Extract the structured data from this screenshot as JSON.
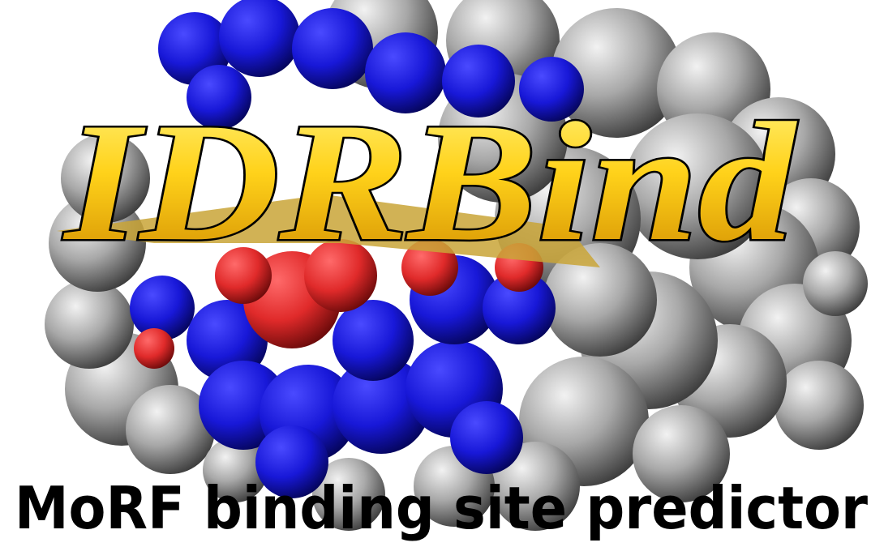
{
  "title": "IDRBind",
  "subtitle": "MoRF binding site predictor"
}
